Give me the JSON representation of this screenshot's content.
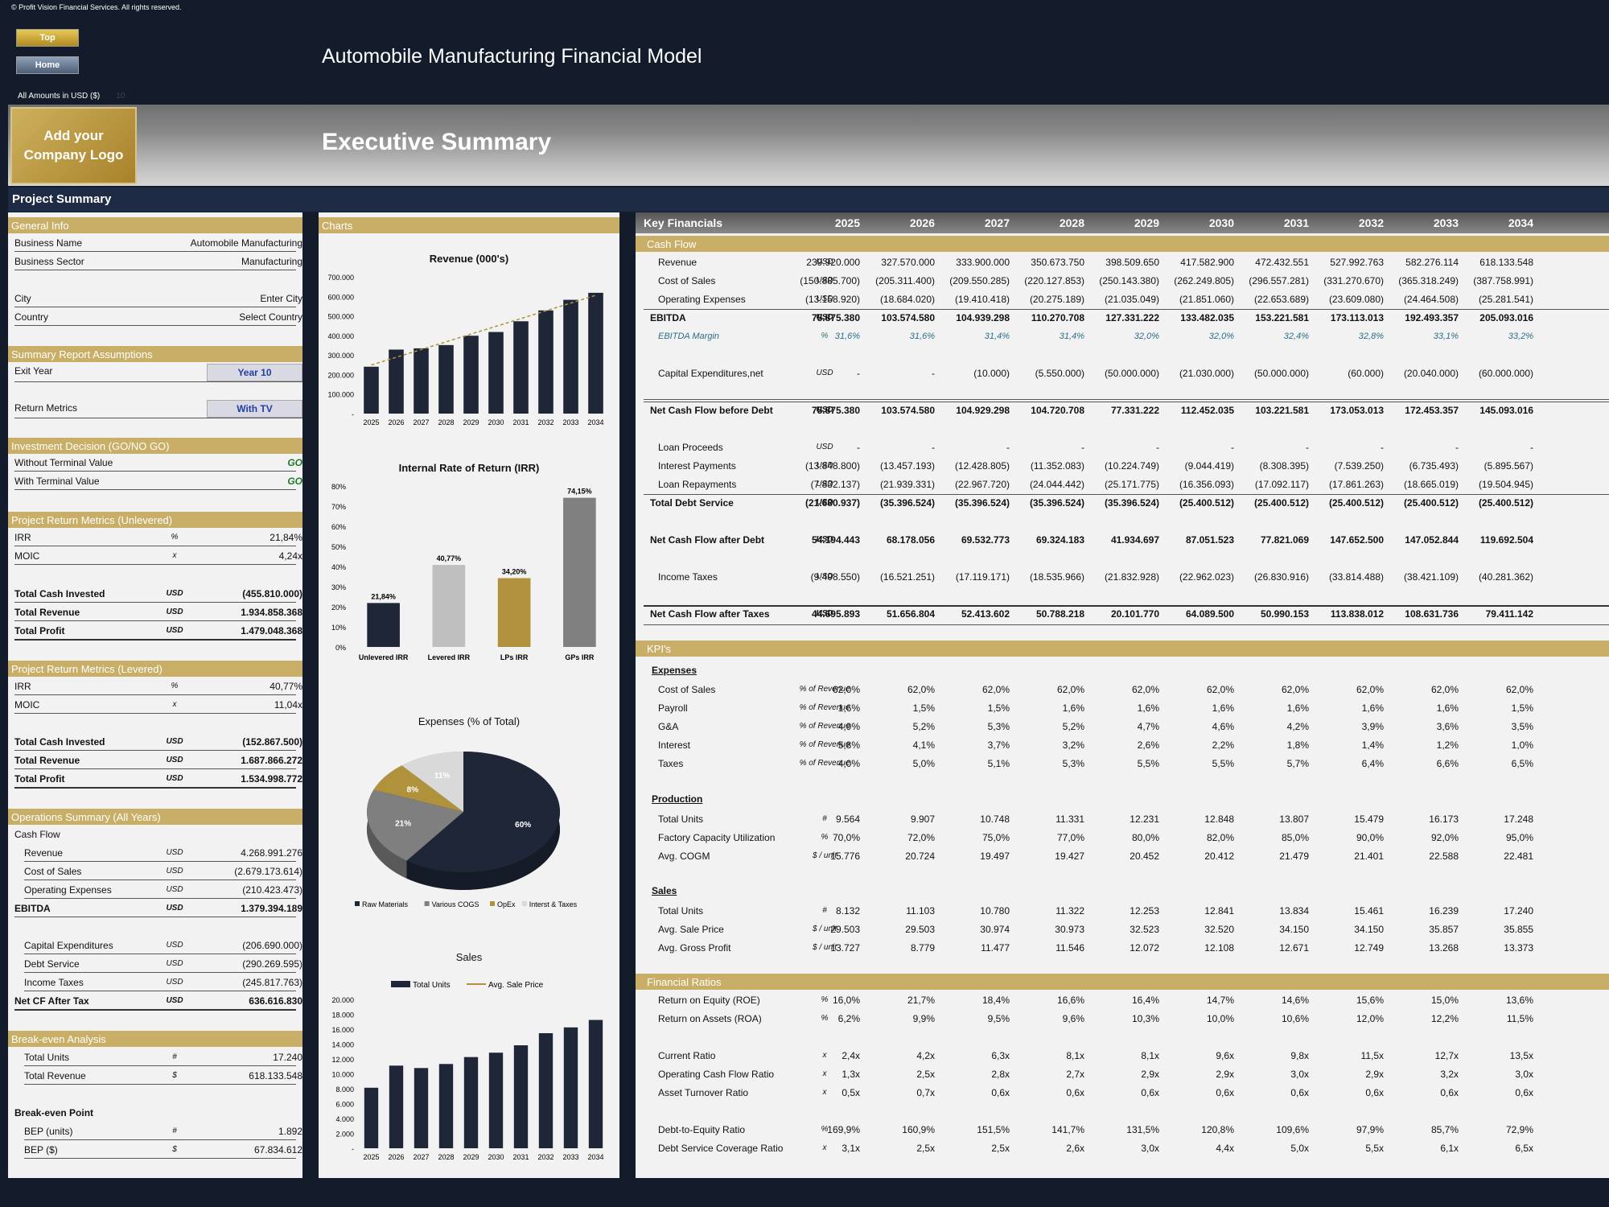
{
  "copyright": "© Profit Vision Financial Services. All rights reserved.",
  "nav": {
    "top": "Top",
    "home": "Home"
  },
  "app_title": "Automobile Manufacturing Financial Model",
  "amounts": {
    "label": "All Amounts in  USD ($)",
    "code": "10"
  },
  "logo_text": "Add your Company Logo",
  "page_title": "Executive Summary",
  "project_summary": "Project Summary",
  "general_info": {
    "title": "General Info",
    "business_name": {
      "label": "Business Name",
      "value": "Automobile Manufacturing"
    },
    "business_sector": {
      "label": "Business Sector",
      "value": "Manufacturing"
    },
    "city": {
      "label": "City",
      "value": "Enter City"
    },
    "country": {
      "label": "Country",
      "value": "Select Country"
    }
  },
  "assumptions": {
    "title": "Summary  Report Assumptions",
    "exit_year": {
      "label": "Exit Year",
      "value": "Year 10"
    },
    "return_metrics": {
      "label": "Return Metrics",
      "value": "With TV"
    }
  },
  "investment": {
    "title": "Investment Decision (GO/NO GO)",
    "without_tv": {
      "label": "Without Terminal Value",
      "value": "GO"
    },
    "with_tv": {
      "label": "With Terminal Value",
      "value": "GO"
    }
  },
  "unlevered": {
    "title": "Project Return Metrics (Unlevered)",
    "irr": {
      "label": "IRR",
      "unit": "%",
      "value": "21,84%"
    },
    "moic": {
      "label": "MOIC",
      "unit": "x",
      "value": "4,24x"
    },
    "cash": {
      "label": "Total Cash Invested",
      "unit": "USD",
      "value": "(455.810.000)"
    },
    "revenue": {
      "label": "Total Revenue",
      "unit": "USD",
      "value": "1.934.858.368"
    },
    "profit": {
      "label": "Total Profit",
      "unit": "USD",
      "value": "1.479.048.368"
    }
  },
  "levered": {
    "title": "Project Return Metrics (Levered)",
    "irr": {
      "label": "IRR",
      "unit": "%",
      "value": "40,77%"
    },
    "moic": {
      "label": "MOIC",
      "unit": "x",
      "value": "11,04x"
    },
    "cash": {
      "label": "Total Cash Invested",
      "unit": "USD",
      "value": "(152.867.500)"
    },
    "revenue": {
      "label": "Total Revenue",
      "unit": "USD",
      "value": "1.687.866.272"
    },
    "profit": {
      "label": "Total Profit",
      "unit": "USD",
      "value": "1.534.998.772"
    }
  },
  "operations": {
    "title": "Operations Summary (All Years)",
    "cashflow": "Cash Flow",
    "revenue": {
      "label": "Revenue",
      "unit": "USD",
      "value": "4.268.991.276"
    },
    "cos": {
      "label": "Cost of Sales",
      "unit": "USD",
      "value": "(2.679.173.614)"
    },
    "opex": {
      "label": "Operating Expenses",
      "unit": "USD",
      "value": "(210.423.473)"
    },
    "ebitda": {
      "label": "EBITDA",
      "unit": "USD",
      "value": "1.379.394.189"
    },
    "capex": {
      "label": "Capital Expenditures",
      "unit": "USD",
      "value": "(206.690.000)"
    },
    "debt": {
      "label": "Debt Service",
      "unit": "USD",
      "value": "(290.269.595)"
    },
    "tax": {
      "label": "Income Taxes",
      "unit": "USD",
      "value": "(245.817.763)"
    },
    "netcf": {
      "label": "Net CF After Tax",
      "unit": "USD",
      "value": "636.616.830"
    }
  },
  "breakeven": {
    "title": "Break-even Analysis",
    "units": {
      "label": "Total Units",
      "unit": "#",
      "value": "17.240"
    },
    "revenue": {
      "label": "Total Revenue",
      "unit": "$",
      "value": "618.133.548"
    },
    "point": "Break-even Point",
    "bep_units": {
      "label": "BEP (units)",
      "unit": "#",
      "value": "1.892"
    },
    "bep_usd": {
      "label": "BEP ($)",
      "unit": "$",
      "value": "67.834.612"
    }
  },
  "charts_title": "Charts",
  "chart_data": [
    {
      "type": "bar",
      "title": "Revenue (000's)",
      "categories": [
        "2025",
        "2026",
        "2027",
        "2028",
        "2029",
        "2030",
        "2031",
        "2032",
        "2033",
        "2034"
      ],
      "values": [
        239920,
        327570,
        333900,
        350674,
        398510,
        417583,
        472433,
        527993,
        582276,
        618134
      ],
      "ylim": [
        0,
        700000
      ],
      "yticks": [
        "-",
        "100.000",
        "200.000",
        "300.000",
        "400.000",
        "500.000",
        "600.000",
        "700.000"
      ],
      "trendline": true,
      "bar_color": "#1e2638"
    },
    {
      "type": "bar",
      "title": "Internal Rate of Return (IRR)",
      "categories": [
        "Unlevered IRR",
        "Levered IRR",
        "LPs IRR",
        "GPs IRR"
      ],
      "values": [
        21.84,
        40.77,
        34.2,
        74.15
      ],
      "labels": [
        "21,84%",
        "40,77%",
        "34,20%",
        "74,15%"
      ],
      "colors": [
        "#1e2638",
        "#bfbfbf",
        "#b0923c",
        "#808080"
      ],
      "ylim": [
        0,
        80
      ],
      "yticks": [
        "0%",
        "10%",
        "20%",
        "30%",
        "40%",
        "50%",
        "60%",
        "70%",
        "80%"
      ]
    },
    {
      "type": "pie",
      "title": "Expenses (% of Total)",
      "series": [
        {
          "name": "Raw Materials",
          "value": 60,
          "label": "60%",
          "color": "#1e2638"
        },
        {
          "name": "Various COGS",
          "value": 21,
          "label": "21%",
          "color": "#7f7f7f"
        },
        {
          "name": "OpEx",
          "value": 8,
          "label": "8%",
          "color": "#b0923c"
        },
        {
          "name": "Interst & Taxes",
          "value": 11,
          "label": "11%",
          "color": "#d9d9d9"
        }
      ]
    },
    {
      "type": "bar",
      "title": "Sales",
      "categories": [
        "2025",
        "2026",
        "2027",
        "2028",
        "2029",
        "2030",
        "2031",
        "2032",
        "2033",
        "2034"
      ],
      "series": [
        {
          "name": "Total Units",
          "values": [
            8132,
            11103,
            10780,
            11322,
            12253,
            12841,
            13834,
            15461,
            16239,
            17240
          ]
        },
        {
          "name": "Avg. Sale Price",
          "values": [
            29503,
            29503,
            30974,
            30973,
            32523,
            32520,
            34150,
            34150,
            35857,
            35855
          ]
        }
      ],
      "ylim": [
        0,
        20000
      ],
      "yticks": [
        "-",
        "2.000",
        "4.000",
        "6.000",
        "8.000",
        "10.000",
        "12.000",
        "14.000",
        "16.000",
        "18.000",
        "20.000"
      ]
    }
  ],
  "key_financials": {
    "title": "Key Financials",
    "years": [
      "2025",
      "2026",
      "2027",
      "2028",
      "2029",
      "2030",
      "2031",
      "2032",
      "2033",
      "2034"
    ],
    "cash_flow_title": "Cash Flow",
    "rows": [
      {
        "label": "Revenue",
        "unit": "USD",
        "vals": [
          "239.920.000",
          "327.570.000",
          "333.900.000",
          "350.673.750",
          "398.509.650",
          "417.582.900",
          "472.432.551",
          "527.992.763",
          "582.276.114",
          "618.133.548"
        ]
      },
      {
        "label": "Cost of Sales",
        "unit": "USD",
        "vals": [
          "(150.885.700)",
          "(205.311.400)",
          "(209.550.285)",
          "(220.127.853)",
          "(250.143.380)",
          "(262.249.805)",
          "(296.557.281)",
          "(331.270.670)",
          "(365.318.249)",
          "(387.758.991)"
        ]
      },
      {
        "label": "Operating Expenses",
        "unit": "USD",
        "vals": [
          "(13.158.920)",
          "(18.684.020)",
          "(19.410.418)",
          "(20.275.189)",
          "(21.035.049)",
          "(21.851.060)",
          "(22.653.689)",
          "(23.609.080)",
          "(24.464.508)",
          "(25.281.541)"
        ]
      },
      {
        "label": "EBITDA",
        "unit": "USD",
        "vals": [
          "75.875.380",
          "103.574.580",
          "104.939.298",
          "110.270.708",
          "127.331.222",
          "133.482.035",
          "153.221.581",
          "173.113.013",
          "192.493.357",
          "205.093.016"
        ]
      },
      {
        "label": "EBITDA Margin",
        "unit": "%",
        "vals": [
          "31,6%",
          "31,6%",
          "31,4%",
          "31,4%",
          "32,0%",
          "32,0%",
          "32,4%",
          "32,8%",
          "33,1%",
          "33,2%"
        ]
      },
      {
        "label": "Capital Expenditures,net",
        "unit": "USD",
        "vals": [
          "-",
          "-",
          "(10.000)",
          "(5.550.000)",
          "(50.000.000)",
          "(21.030.000)",
          "(50.000.000)",
          "(60.000)",
          "(20.040.000)",
          "(60.000.000)"
        ]
      },
      {
        "label": "Net Cash Flow before Debt",
        "unit": "USD",
        "vals": [
          "75.875.380",
          "103.574.580",
          "104.929.298",
          "104.720.708",
          "77.331.222",
          "112.452.035",
          "103.221.581",
          "173.053.013",
          "172.453.357",
          "145.093.016"
        ]
      },
      {
        "label": "Loan Proceeds",
        "unit": "USD",
        "vals": [
          "-",
          "-",
          "-",
          "-",
          "-",
          "-",
          "-",
          "-",
          "-",
          "-"
        ]
      },
      {
        "label": "Interest Payments",
        "unit": "USD",
        "vals": [
          "(13.848.800)",
          "(13.457.193)",
          "(12.428.805)",
          "(11.352.083)",
          "(10.224.749)",
          "(9.044.419)",
          "(8.308.395)",
          "(7.539.250)",
          "(6.735.493)",
          "(5.895.567)"
        ]
      },
      {
        "label": "Loan Repayments",
        "unit": "USD",
        "vals": [
          "(7.832.137)",
          "(21.939.331)",
          "(22.967.720)",
          "(24.044.442)",
          "(25.171.775)",
          "(16.356.093)",
          "(17.092.117)",
          "(17.861.263)",
          "(18.665.019)",
          "(19.504.945)"
        ]
      },
      {
        "label": "Total Debt Service",
        "unit": "USD",
        "vals": [
          "(21.680.937)",
          "(35.396.524)",
          "(35.396.524)",
          "(35.396.524)",
          "(35.396.524)",
          "(25.400.512)",
          "(25.400.512)",
          "(25.400.512)",
          "(25.400.512)",
          "(25.400.512)"
        ]
      },
      {
        "label": "Net Cash Flow after Debt",
        "unit": "USD",
        "vals": [
          "54.194.443",
          "68.178.056",
          "69.532.773",
          "69.324.183",
          "41.934.697",
          "87.051.523",
          "77.821.069",
          "147.652.500",
          "147.052.844",
          "119.692.504"
        ]
      },
      {
        "label": "Income Taxes",
        "unit": "USD",
        "vals": [
          "(9.498.550)",
          "(16.521.251)",
          "(17.119.171)",
          "(18.535.966)",
          "(21.832.928)",
          "(22.962.023)",
          "(26.830.916)",
          "(33.814.488)",
          "(38.421.109)",
          "(40.281.362)"
        ]
      },
      {
        "label": "Net Cash Flow after Taxes",
        "unit": "USD",
        "vals": [
          "44.695.893",
          "51.656.804",
          "52.413.602",
          "50.788.218",
          "20.101.770",
          "64.089.500",
          "50.990.153",
          "113.838.012",
          "108.631.736",
          "79.411.142"
        ]
      }
    ],
    "kpi_title": "KPI's",
    "expenses_title": "Expenses",
    "expenses": [
      {
        "label": "Cost of Sales",
        "unit": "% of Revenue",
        "vals": [
          "62,0%",
          "62,0%",
          "62,0%",
          "62,0%",
          "62,0%",
          "62,0%",
          "62,0%",
          "62,0%",
          "62,0%",
          "62,0%"
        ]
      },
      {
        "label": "Payroll",
        "unit": "% of Revenue",
        "vals": [
          "1,6%",
          "1,5%",
          "1,5%",
          "1,6%",
          "1,6%",
          "1,6%",
          "1,6%",
          "1,6%",
          "1,6%",
          "1,5%"
        ]
      },
      {
        "label": "G&A",
        "unit": "% of Revenue",
        "vals": [
          "4,9%",
          "5,2%",
          "5,3%",
          "5,2%",
          "4,7%",
          "4,6%",
          "4,2%",
          "3,9%",
          "3,6%",
          "3,5%"
        ]
      },
      {
        "label": "Interest",
        "unit": "% of Revenue",
        "vals": [
          "5,8%",
          "4,1%",
          "3,7%",
          "3,2%",
          "2,6%",
          "2,2%",
          "1,8%",
          "1,4%",
          "1,2%",
          "1,0%"
        ]
      },
      {
        "label": "Taxes",
        "unit": "% of Revenue",
        "vals": [
          "4,0%",
          "5,0%",
          "5,1%",
          "5,3%",
          "5,5%",
          "5,5%",
          "5,7%",
          "6,4%",
          "6,6%",
          "6,5%"
        ]
      }
    ],
    "production_title": "Production",
    "production": [
      {
        "label": "Total Units",
        "unit": "#",
        "vals": [
          "9.564",
          "9.907",
          "10.748",
          "11.331",
          "12.231",
          "12.848",
          "13.807",
          "15.479",
          "16.173",
          "17.248"
        ]
      },
      {
        "label": "Factory Capacity Utilization",
        "unit": "%",
        "vals": [
          "70,0%",
          "72,0%",
          "75,0%",
          "77,0%",
          "80,0%",
          "82,0%",
          "85,0%",
          "90,0%",
          "92,0%",
          "95,0%"
        ]
      },
      {
        "label": "Avg. COGM",
        "unit": "$ / unit",
        "vals": [
          "15.776",
          "20.724",
          "19.497",
          "19.427",
          "20.452",
          "20.412",
          "21.479",
          "21.401",
          "22.588",
          "22.481"
        ]
      }
    ],
    "sales_title": "Sales",
    "sales": [
      {
        "label": "Total Units",
        "unit": "#",
        "vals": [
          "8.132",
          "11.103",
          "10.780",
          "11.322",
          "12.253",
          "12.841",
          "13.834",
          "15.461",
          "16.239",
          "17.240"
        ]
      },
      {
        "label": "Avg. Sale Price",
        "unit": "$ / unit",
        "vals": [
          "29.503",
          "29.503",
          "30.974",
          "30.973",
          "32.523",
          "32.520",
          "34.150",
          "34.150",
          "35.857",
          "35.855"
        ]
      },
      {
        "label": "Avg. Gross Profit",
        "unit": "$ / unit",
        "vals": [
          "13.727",
          "8.779",
          "11.477",
          "11.546",
          "12.072",
          "12.108",
          "12.671",
          "12.749",
          "13.268",
          "13.373"
        ]
      }
    ],
    "ratios_title": "Financial Ratios",
    "ratios": [
      {
        "label": "Return on Equity (ROE)",
        "unit": "%",
        "vals": [
          "16,0%",
          "21,7%",
          "18,4%",
          "16,6%",
          "16,4%",
          "14,7%",
          "14,6%",
          "15,6%",
          "15,0%",
          "13,6%"
        ]
      },
      {
        "label": "Return on Assets (ROA)",
        "unit": "%",
        "vals": [
          "6,2%",
          "9,9%",
          "9,5%",
          "9,6%",
          "10,3%",
          "10,0%",
          "10,6%",
          "12,0%",
          "12,2%",
          "11,5%"
        ]
      },
      {
        "label": "Current Ratio",
        "unit": "x",
        "vals": [
          "2,4x",
          "4,2x",
          "6,3x",
          "8,1x",
          "8,1x",
          "9,6x",
          "9,8x",
          "11,5x",
          "12,7x",
          "13,5x"
        ]
      },
      {
        "label": "Operating Cash Flow Ratio",
        "unit": "x",
        "vals": [
          "1,3x",
          "2,5x",
          "2,8x",
          "2,7x",
          "2,9x",
          "2,9x",
          "3,0x",
          "2,9x",
          "3,2x",
          "3,0x"
        ]
      },
      {
        "label": "Asset Turnover Ratio",
        "unit": "x",
        "vals": [
          "0,5x",
          "0,7x",
          "0,6x",
          "0,6x",
          "0,6x",
          "0,6x",
          "0,6x",
          "0,6x",
          "0,6x",
          "0,6x"
        ]
      },
      {
        "label": "Debt-to-Equity Ratio",
        "unit": "%",
        "vals": [
          "169,9%",
          "160,9%",
          "151,5%",
          "141,7%",
          "131,5%",
          "120,8%",
          "109,6%",
          "97,9%",
          "85,7%",
          "72,9%"
        ]
      },
      {
        "label": "Debt Service Coverage Ratio",
        "unit": "x",
        "vals": [
          "3,1x",
          "2,5x",
          "2,5x",
          "2,6x",
          "3,0x",
          "4,4x",
          "5,0x",
          "5,5x",
          "6,1x",
          "6,5x"
        ]
      }
    ]
  }
}
